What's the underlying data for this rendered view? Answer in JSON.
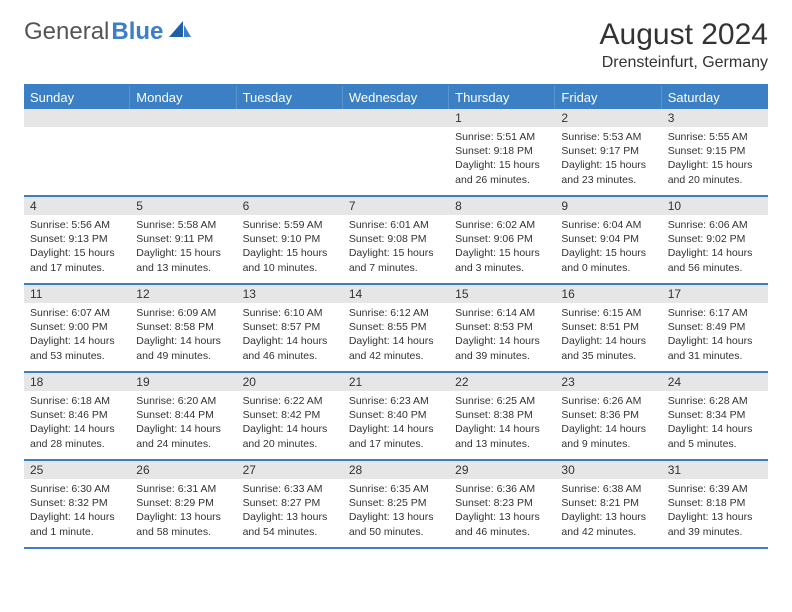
{
  "logo": {
    "part1": "General",
    "part2": "Blue"
  },
  "title": "August 2024",
  "location": "Drensteinfurt, Germany",
  "colors": {
    "accent": "#3b7fc4",
    "headerBg": "#e6e6e6",
    "text": "#333333",
    "white": "#ffffff"
  },
  "dayHeaders": [
    "Sunday",
    "Monday",
    "Tuesday",
    "Wednesday",
    "Thursday",
    "Friday",
    "Saturday"
  ],
  "weeks": [
    [
      {
        "num": "",
        "sunrise": "",
        "sunset": "",
        "daylight1": "",
        "daylight2": ""
      },
      {
        "num": "",
        "sunrise": "",
        "sunset": "",
        "daylight1": "",
        "daylight2": ""
      },
      {
        "num": "",
        "sunrise": "",
        "sunset": "",
        "daylight1": "",
        "daylight2": ""
      },
      {
        "num": "",
        "sunrise": "",
        "sunset": "",
        "daylight1": "",
        "daylight2": ""
      },
      {
        "num": "1",
        "sunrise": "Sunrise: 5:51 AM",
        "sunset": "Sunset: 9:18 PM",
        "daylight1": "Daylight: 15 hours",
        "daylight2": "and 26 minutes."
      },
      {
        "num": "2",
        "sunrise": "Sunrise: 5:53 AM",
        "sunset": "Sunset: 9:17 PM",
        "daylight1": "Daylight: 15 hours",
        "daylight2": "and 23 minutes."
      },
      {
        "num": "3",
        "sunrise": "Sunrise: 5:55 AM",
        "sunset": "Sunset: 9:15 PM",
        "daylight1": "Daylight: 15 hours",
        "daylight2": "and 20 minutes."
      }
    ],
    [
      {
        "num": "4",
        "sunrise": "Sunrise: 5:56 AM",
        "sunset": "Sunset: 9:13 PM",
        "daylight1": "Daylight: 15 hours",
        "daylight2": "and 17 minutes."
      },
      {
        "num": "5",
        "sunrise": "Sunrise: 5:58 AM",
        "sunset": "Sunset: 9:11 PM",
        "daylight1": "Daylight: 15 hours",
        "daylight2": "and 13 minutes."
      },
      {
        "num": "6",
        "sunrise": "Sunrise: 5:59 AM",
        "sunset": "Sunset: 9:10 PM",
        "daylight1": "Daylight: 15 hours",
        "daylight2": "and 10 minutes."
      },
      {
        "num": "7",
        "sunrise": "Sunrise: 6:01 AM",
        "sunset": "Sunset: 9:08 PM",
        "daylight1": "Daylight: 15 hours",
        "daylight2": "and 7 minutes."
      },
      {
        "num": "8",
        "sunrise": "Sunrise: 6:02 AM",
        "sunset": "Sunset: 9:06 PM",
        "daylight1": "Daylight: 15 hours",
        "daylight2": "and 3 minutes."
      },
      {
        "num": "9",
        "sunrise": "Sunrise: 6:04 AM",
        "sunset": "Sunset: 9:04 PM",
        "daylight1": "Daylight: 15 hours",
        "daylight2": "and 0 minutes."
      },
      {
        "num": "10",
        "sunrise": "Sunrise: 6:06 AM",
        "sunset": "Sunset: 9:02 PM",
        "daylight1": "Daylight: 14 hours",
        "daylight2": "and 56 minutes."
      }
    ],
    [
      {
        "num": "11",
        "sunrise": "Sunrise: 6:07 AM",
        "sunset": "Sunset: 9:00 PM",
        "daylight1": "Daylight: 14 hours",
        "daylight2": "and 53 minutes."
      },
      {
        "num": "12",
        "sunrise": "Sunrise: 6:09 AM",
        "sunset": "Sunset: 8:58 PM",
        "daylight1": "Daylight: 14 hours",
        "daylight2": "and 49 minutes."
      },
      {
        "num": "13",
        "sunrise": "Sunrise: 6:10 AM",
        "sunset": "Sunset: 8:57 PM",
        "daylight1": "Daylight: 14 hours",
        "daylight2": "and 46 minutes."
      },
      {
        "num": "14",
        "sunrise": "Sunrise: 6:12 AM",
        "sunset": "Sunset: 8:55 PM",
        "daylight1": "Daylight: 14 hours",
        "daylight2": "and 42 minutes."
      },
      {
        "num": "15",
        "sunrise": "Sunrise: 6:14 AM",
        "sunset": "Sunset: 8:53 PM",
        "daylight1": "Daylight: 14 hours",
        "daylight2": "and 39 minutes."
      },
      {
        "num": "16",
        "sunrise": "Sunrise: 6:15 AM",
        "sunset": "Sunset: 8:51 PM",
        "daylight1": "Daylight: 14 hours",
        "daylight2": "and 35 minutes."
      },
      {
        "num": "17",
        "sunrise": "Sunrise: 6:17 AM",
        "sunset": "Sunset: 8:49 PM",
        "daylight1": "Daylight: 14 hours",
        "daylight2": "and 31 minutes."
      }
    ],
    [
      {
        "num": "18",
        "sunrise": "Sunrise: 6:18 AM",
        "sunset": "Sunset: 8:46 PM",
        "daylight1": "Daylight: 14 hours",
        "daylight2": "and 28 minutes."
      },
      {
        "num": "19",
        "sunrise": "Sunrise: 6:20 AM",
        "sunset": "Sunset: 8:44 PM",
        "daylight1": "Daylight: 14 hours",
        "daylight2": "and 24 minutes."
      },
      {
        "num": "20",
        "sunrise": "Sunrise: 6:22 AM",
        "sunset": "Sunset: 8:42 PM",
        "daylight1": "Daylight: 14 hours",
        "daylight2": "and 20 minutes."
      },
      {
        "num": "21",
        "sunrise": "Sunrise: 6:23 AM",
        "sunset": "Sunset: 8:40 PM",
        "daylight1": "Daylight: 14 hours",
        "daylight2": "and 17 minutes."
      },
      {
        "num": "22",
        "sunrise": "Sunrise: 6:25 AM",
        "sunset": "Sunset: 8:38 PM",
        "daylight1": "Daylight: 14 hours",
        "daylight2": "and 13 minutes."
      },
      {
        "num": "23",
        "sunrise": "Sunrise: 6:26 AM",
        "sunset": "Sunset: 8:36 PM",
        "daylight1": "Daylight: 14 hours",
        "daylight2": "and 9 minutes."
      },
      {
        "num": "24",
        "sunrise": "Sunrise: 6:28 AM",
        "sunset": "Sunset: 8:34 PM",
        "daylight1": "Daylight: 14 hours",
        "daylight2": "and 5 minutes."
      }
    ],
    [
      {
        "num": "25",
        "sunrise": "Sunrise: 6:30 AM",
        "sunset": "Sunset: 8:32 PM",
        "daylight1": "Daylight: 14 hours",
        "daylight2": "and 1 minute."
      },
      {
        "num": "26",
        "sunrise": "Sunrise: 6:31 AM",
        "sunset": "Sunset: 8:29 PM",
        "daylight1": "Daylight: 13 hours",
        "daylight2": "and 58 minutes."
      },
      {
        "num": "27",
        "sunrise": "Sunrise: 6:33 AM",
        "sunset": "Sunset: 8:27 PM",
        "daylight1": "Daylight: 13 hours",
        "daylight2": "and 54 minutes."
      },
      {
        "num": "28",
        "sunrise": "Sunrise: 6:35 AM",
        "sunset": "Sunset: 8:25 PM",
        "daylight1": "Daylight: 13 hours",
        "daylight2": "and 50 minutes."
      },
      {
        "num": "29",
        "sunrise": "Sunrise: 6:36 AM",
        "sunset": "Sunset: 8:23 PM",
        "daylight1": "Daylight: 13 hours",
        "daylight2": "and 46 minutes."
      },
      {
        "num": "30",
        "sunrise": "Sunrise: 6:38 AM",
        "sunset": "Sunset: 8:21 PM",
        "daylight1": "Daylight: 13 hours",
        "daylight2": "and 42 minutes."
      },
      {
        "num": "31",
        "sunrise": "Sunrise: 6:39 AM",
        "sunset": "Sunset: 8:18 PM",
        "daylight1": "Daylight: 13 hours",
        "daylight2": "and 39 minutes."
      }
    ]
  ]
}
